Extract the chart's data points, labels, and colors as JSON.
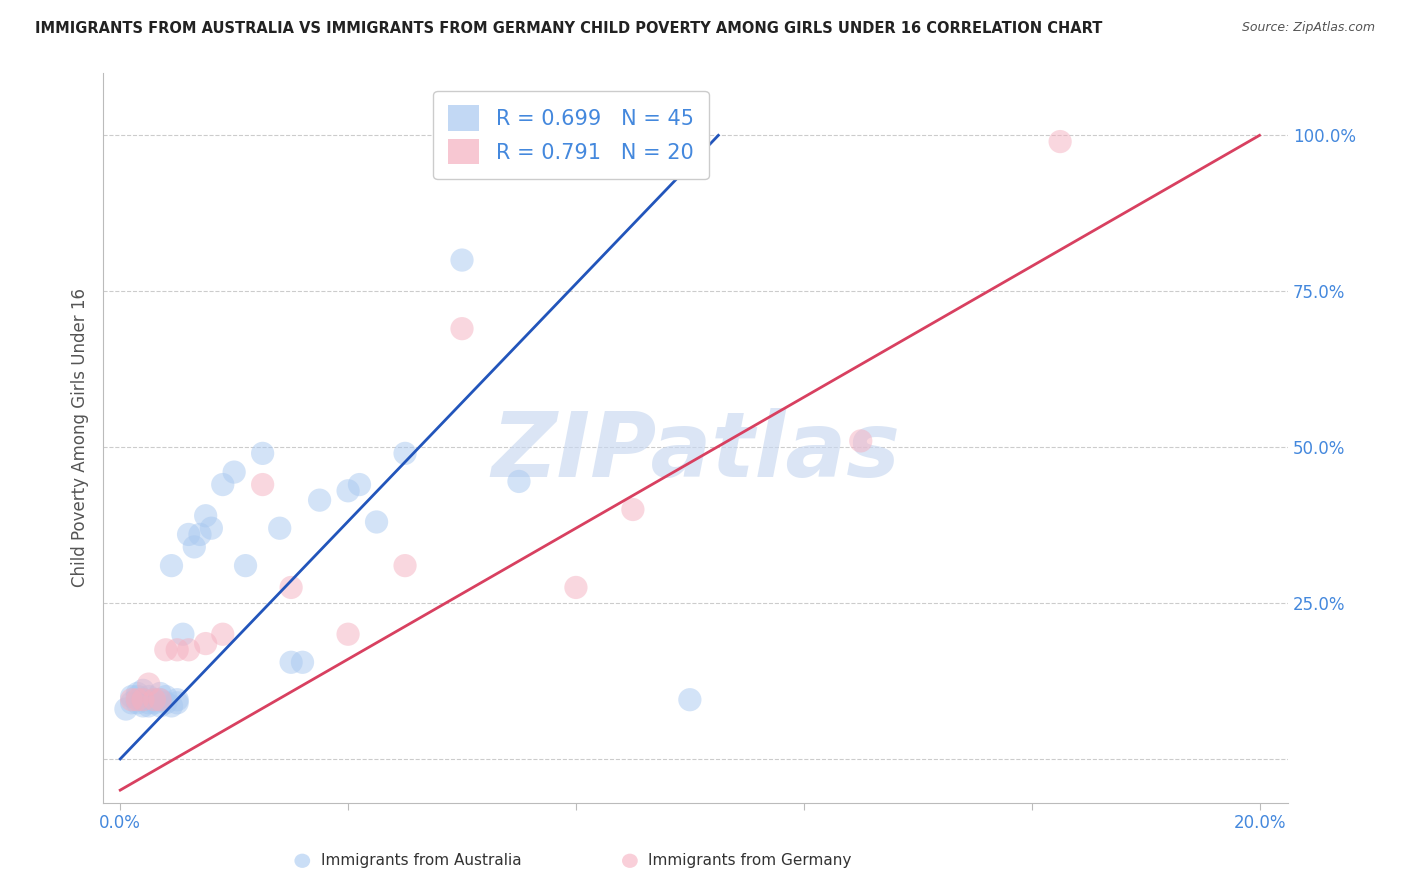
{
  "title": "IMMIGRANTS FROM AUSTRALIA VS IMMIGRANTS FROM GERMANY CHILD POVERTY AMONG GIRLS UNDER 16 CORRELATION CHART",
  "source": "Source: ZipAtlas.com",
  "ylabel": "Child Poverty Among Girls Under 16",
  "blue_R": 0.699,
  "blue_N": 45,
  "pink_R": 0.791,
  "pink_N": 20,
  "blue_scatter_color": "#A8C8F0",
  "pink_scatter_color": "#F5B0C0",
  "blue_line_color": "#2255BB",
  "pink_line_color": "#D84060",
  "watermark_text": "ZIPatlas",
  "watermark_color": "#C8D8F0",
  "bg_color": "#FFFFFF",
  "grid_color": "#CCCCCC",
  "title_color": "#222222",
  "axis_tick_color": "#4488DD",
  "ylabel_color": "#555555",
  "blue_scatter_x": [
    0.001,
    0.002,
    0.002,
    0.003,
    0.003,
    0.003,
    0.004,
    0.004,
    0.004,
    0.005,
    0.005,
    0.005,
    0.006,
    0.006,
    0.007,
    0.007,
    0.007,
    0.008,
    0.008,
    0.009,
    0.009,
    0.01,
    0.01,
    0.011,
    0.012,
    0.013,
    0.014,
    0.015,
    0.016,
    0.018,
    0.02,
    0.022,
    0.025,
    0.028,
    0.03,
    0.032,
    0.035,
    0.04,
    0.042,
    0.045,
    0.05,
    0.06,
    0.07,
    0.095,
    0.1
  ],
  "blue_scatter_y": [
    0.08,
    0.09,
    0.1,
    0.09,
    0.1,
    0.105,
    0.085,
    0.095,
    0.11,
    0.085,
    0.09,
    0.1,
    0.09,
    0.095,
    0.085,
    0.095,
    0.105,
    0.09,
    0.1,
    0.085,
    0.31,
    0.09,
    0.095,
    0.2,
    0.36,
    0.34,
    0.36,
    0.39,
    0.37,
    0.44,
    0.46,
    0.31,
    0.49,
    0.37,
    0.155,
    0.155,
    0.415,
    0.43,
    0.44,
    0.38,
    0.49,
    0.8,
    0.445,
    0.99,
    0.095
  ],
  "pink_scatter_x": [
    0.002,
    0.003,
    0.004,
    0.005,
    0.006,
    0.007,
    0.008,
    0.01,
    0.012,
    0.015,
    0.018,
    0.025,
    0.03,
    0.04,
    0.05,
    0.06,
    0.08,
    0.09,
    0.13,
    0.165
  ],
  "pink_scatter_y": [
    0.095,
    0.095,
    0.095,
    0.12,
    0.095,
    0.095,
    0.175,
    0.175,
    0.175,
    0.185,
    0.2,
    0.44,
    0.275,
    0.2,
    0.31,
    0.69,
    0.275,
    0.4,
    0.51,
    0.99
  ],
  "blue_line_x0": 0.0,
  "blue_line_x1": 0.105,
  "blue_line_y0": 0.0,
  "blue_line_y1": 1.0,
  "pink_line_x0": 0.0,
  "pink_line_x1": 0.2,
  "pink_line_y0": -0.05,
  "pink_line_y1": 1.0,
  "xlim_min": -0.003,
  "xlim_max": 0.205,
  "ylim_min": -0.07,
  "ylim_max": 1.1,
  "xtick_pos": [
    0.0,
    0.04,
    0.08,
    0.12,
    0.16,
    0.2
  ],
  "xtick_labels": [
    "0.0%",
    "",
    "",
    "",
    "",
    "20.0%"
  ],
  "ytick_pos": [
    0.0,
    0.25,
    0.5,
    0.75,
    1.0
  ],
  "ytick_labels": [
    "",
    "25.0%",
    "50.0%",
    "75.0%",
    "100.0%"
  ],
  "scatter_size": 280,
  "scatter_alpha": 0.5,
  "title_fontsize": 10.5,
  "source_fontsize": 9,
  "legend_fontsize": 15,
  "ylabel_fontsize": 12,
  "tick_fontsize": 12
}
